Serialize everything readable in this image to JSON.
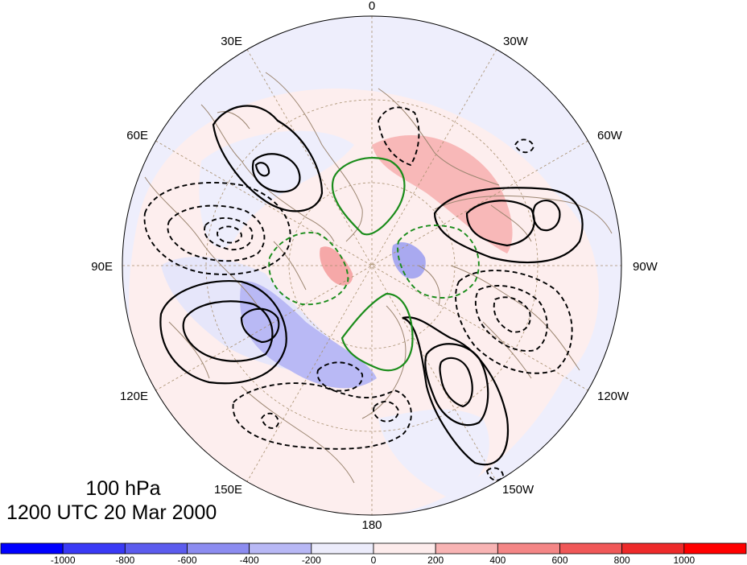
{
  "map": {
    "projection": "polar stereographic, north pole",
    "longitude_labels": [
      "0",
      "30W",
      "60W",
      "90W",
      "120W",
      "150W",
      "180",
      "150E",
      "120E",
      "90E",
      "60E",
      "30E"
    ],
    "fields": {
      "shaded": "anomaly field (color-filled)",
      "contours": "black solid = positive, black dashed = negative, green = zero-line"
    }
  },
  "caption": {
    "level": "100 hPa",
    "time": "1200 UTC 20 Mar 2000"
  },
  "colorbar": {
    "ticks": [
      "-1000",
      "-800",
      "-600",
      "-400",
      "-200",
      "0",
      "200",
      "400",
      "600",
      "800",
      "1000"
    ],
    "colors": [
      "#0000ff",
      "#3a3af5",
      "#5c5cee",
      "#8c8cf0",
      "#b8b8f5",
      "#ececfb",
      "#fdecec",
      "#f8b4b4",
      "#f48686",
      "#f05858",
      "#ee2a2a",
      "#ff0000"
    ]
  },
  "colors": {
    "background": "#ffffff",
    "coast": "#9b8570",
    "grid": "#a8906f",
    "contour_positive": "#000000",
    "contour_zero": "#1a8c1a"
  }
}
